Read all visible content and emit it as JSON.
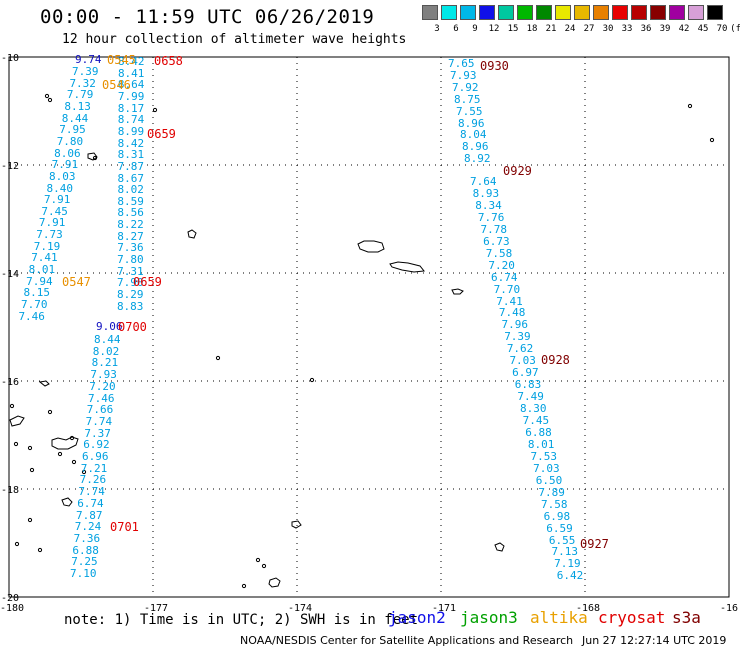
{
  "header": {
    "title": "00:00 - 11:59 UTC 06/26/2019",
    "subtitle": "12 hour collection of altimeter wave heights"
  },
  "color_scale": {
    "labels": [
      "3",
      "6",
      "9",
      "12",
      "15",
      "18",
      "21",
      "24",
      "27",
      "30",
      "33",
      "36",
      "39",
      "42",
      "45",
      "70"
    ],
    "colors": [
      "#808080",
      "#00e8e8",
      "#00b8e8",
      "#1010e8",
      "#00c8a0",
      "#00b800",
      "#008800",
      "#e8e800",
      "#e8b800",
      "#e88000",
      "#e80000",
      "#b80000",
      "#880000",
      "#a000a0",
      "#d8a0d8",
      "#000000"
    ],
    "unit": "(ft)"
  },
  "axes": {
    "lon_labels": [
      "-180",
      "-177",
      "-174",
      "-171",
      "-168",
      "-16"
    ],
    "lat_labels": [
      "-10",
      "-12",
      "-14",
      "-16",
      "-18",
      "-20"
    ]
  },
  "tracks": [
    {
      "id": "cryosat-left",
      "color": "#00a0e0",
      "values": [
        "7.39",
        "7.32",
        "7.79",
        "8.13",
        "8.44",
        "7.95",
        "7.80",
        "8.06",
        "7.91",
        "8.03",
        "8.40",
        "7.91",
        "7.45",
        "7.91",
        "7.73",
        "7.19",
        "7.41",
        "8.01",
        "7.94",
        "8.15",
        "7.70",
        "7.46"
      ]
    },
    {
      "id": "s3a-left",
      "color": "#00a0e0",
      "values": [
        "8.42",
        "8.41",
        "8.64",
        "7.99",
        "8.17",
        "8.74",
        "8.99",
        "8.42",
        "8.31",
        "7.87",
        "8.67",
        "8.02",
        "8.59",
        "8.56",
        "8.22",
        "8.27",
        "7.36",
        "7.80",
        "7.31",
        "7.90",
        "8.29",
        "8.83"
      ]
    },
    {
      "id": "s3a-left-lower",
      "color": "#00a0e0",
      "values": [
        "8.44",
        "8.02",
        "8.21",
        "7.93",
        "7.20",
        "7.46",
        "7.66",
        "7.74",
        "7.37",
        "6.92",
        "6.96",
        "7.21",
        "7.26",
        "7.74",
        "6.74",
        "7.87",
        "7.24",
        "7.36",
        "6.88",
        "7.25",
        "7.10"
      ]
    },
    {
      "id": "s3a-right-upper",
      "color": "#00a0e0",
      "values": [
        "7.65",
        "7.93",
        "7.92",
        "8.75",
        "7.55",
        "8.96",
        "8.04",
        "8.96",
        "8.92"
      ]
    },
    {
      "id": "s3a-right",
      "color": "#00a0e0",
      "values": [
        "7.64",
        "8.93",
        "8.34",
        "7.76",
        "7.78",
        "6.73",
        "7.58",
        "7.20",
        "6.74",
        "7.70",
        "7.41",
        "7.48",
        "7.96",
        "7.39",
        "7.62",
        "7.03",
        "6.97",
        "6.83",
        "7.49",
        "8.30",
        "7.45",
        "6.88",
        "8.01",
        "7.53",
        "7.03",
        "6.50",
        "7.89",
        "7.58",
        "6.98",
        "6.59",
        "6.55",
        "7.13",
        "7.19",
        "6.42"
      ]
    }
  ],
  "special_values": [
    {
      "text": "9.74",
      "color": "#1010c0"
    },
    {
      "text": "9.06",
      "color": "#1010c0"
    }
  ],
  "time_labels": [
    {
      "text": "0545",
      "color": "#e89000"
    },
    {
      "text": "0546",
      "color": "#e89000"
    },
    {
      "text": "0547",
      "color": "#e89000"
    },
    {
      "text": "0658",
      "color": "#e00000"
    },
    {
      "text": "0659",
      "color": "#e00000"
    },
    {
      "text": "0659",
      "color": "#e00000"
    },
    {
      "text": "0700",
      "color": "#e00000"
    },
    {
      "text": "0701",
      "color": "#e00000"
    },
    {
      "text": "0930",
      "color": "#800000"
    },
    {
      "text": "0929",
      "color": "#800000"
    },
    {
      "text": "0928",
      "color": "#800000"
    },
    {
      "text": "0927",
      "color": "#800000"
    }
  ],
  "footer": {
    "note": "note: 1) Time is in UTC; 2) SWH is in feet",
    "legend": [
      {
        "name": "jason2",
        "color": "#1010e8"
      },
      {
        "name": "jason3",
        "color": "#00a000"
      },
      {
        "name": "altika",
        "color": "#e8a000"
      },
      {
        "name": "cryosat",
        "color": "#e00000"
      },
      {
        "name": "s3a",
        "color": "#800000"
      }
    ],
    "credit": "NOAA/NESDIS Center for Satellite Applications and Research",
    "timestamp": "Jun 27 12:27:14 UTC 2019"
  }
}
